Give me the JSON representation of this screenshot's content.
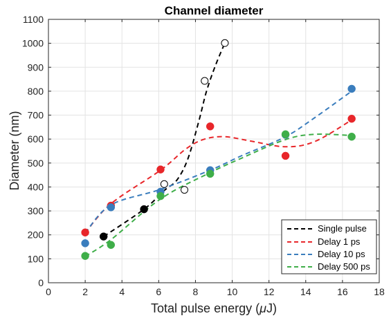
{
  "chart_data": {
    "type": "scatter",
    "title": "Channel diameter",
    "xlabel_prefix": "Total pulse energy (",
    "xlabel_mu": "μ",
    "xlabel_suffix": "J)",
    "ylabel": "Diameter (nm)",
    "xlim": [
      0,
      18
    ],
    "ylim": [
      0,
      1100
    ],
    "xticks": [
      0,
      2,
      4,
      6,
      8,
      10,
      12,
      14,
      16,
      18
    ],
    "yticks": [
      0,
      100,
      200,
      300,
      400,
      500,
      600,
      700,
      800,
      900,
      1000,
      1100
    ],
    "grid": true,
    "legend_position": "bottom-right",
    "series": [
      {
        "name": "Single pulse",
        "color": "#000000",
        "points_filled": [
          [
            3.0,
            193
          ],
          [
            5.2,
            307
          ]
        ],
        "points_open": [
          [
            6.3,
            412
          ],
          [
            7.4,
            388
          ],
          [
            8.5,
            843
          ],
          [
            9.6,
            1001
          ]
        ],
        "fit": [
          [
            3.0,
            193
          ],
          [
            5.2,
            307
          ],
          [
            6.3,
            385
          ],
          [
            7.0,
            430
          ],
          [
            7.6,
            520
          ],
          [
            8.2,
            680
          ],
          [
            8.6,
            800
          ],
          [
            9.1,
            910
          ],
          [
            9.6,
            1001
          ]
        ]
      },
      {
        "name": "Delay 1 ps",
        "color": "#e8262a",
        "points_filled": [
          [
            2.0,
            210
          ],
          [
            3.4,
            322
          ],
          [
            6.1,
            473
          ],
          [
            8.8,
            653
          ],
          [
            12.9,
            530
          ],
          [
            16.5,
            685
          ]
        ],
        "points_open": [],
        "fit": [
          [
            2.0,
            208
          ],
          [
            3.4,
            330
          ],
          [
            6.1,
            470
          ],
          [
            7.5,
            560
          ],
          [
            8.5,
            600
          ],
          [
            9.6,
            610
          ],
          [
            11.0,
            592
          ],
          [
            12.9,
            568
          ],
          [
            14.5,
            590
          ],
          [
            16.5,
            680
          ]
        ]
      },
      {
        "name": "Delay 10 ps",
        "color": "#3a7dbd",
        "points_filled": [
          [
            2.0,
            165
          ],
          [
            3.4,
            315
          ],
          [
            6.1,
            380
          ],
          [
            8.8,
            470
          ],
          [
            12.9,
            618
          ],
          [
            16.5,
            810
          ]
        ],
        "points_open": [],
        "fit": [
          [
            2.0,
            208
          ],
          [
            3.4,
            325
          ],
          [
            6.1,
            390
          ],
          [
            8.8,
            470
          ],
          [
            10.5,
            530
          ],
          [
            12.9,
            610
          ],
          [
            14.5,
            690
          ],
          [
            16.5,
            800
          ]
        ]
      },
      {
        "name": "Delay 500 ps",
        "color": "#3fae49",
        "points_filled": [
          [
            2.0,
            112
          ],
          [
            3.4,
            158
          ],
          [
            6.1,
            362
          ],
          [
            8.8,
            455
          ],
          [
            12.9,
            620
          ],
          [
            16.5,
            610
          ]
        ],
        "points_open": [],
        "fit": [
          [
            2.0,
            110
          ],
          [
            3.4,
            180
          ],
          [
            6.1,
            350
          ],
          [
            8.8,
            460
          ],
          [
            10.5,
            520
          ],
          [
            12.9,
            598
          ],
          [
            14.5,
            620
          ],
          [
            16.5,
            615
          ]
        ]
      }
    ]
  }
}
